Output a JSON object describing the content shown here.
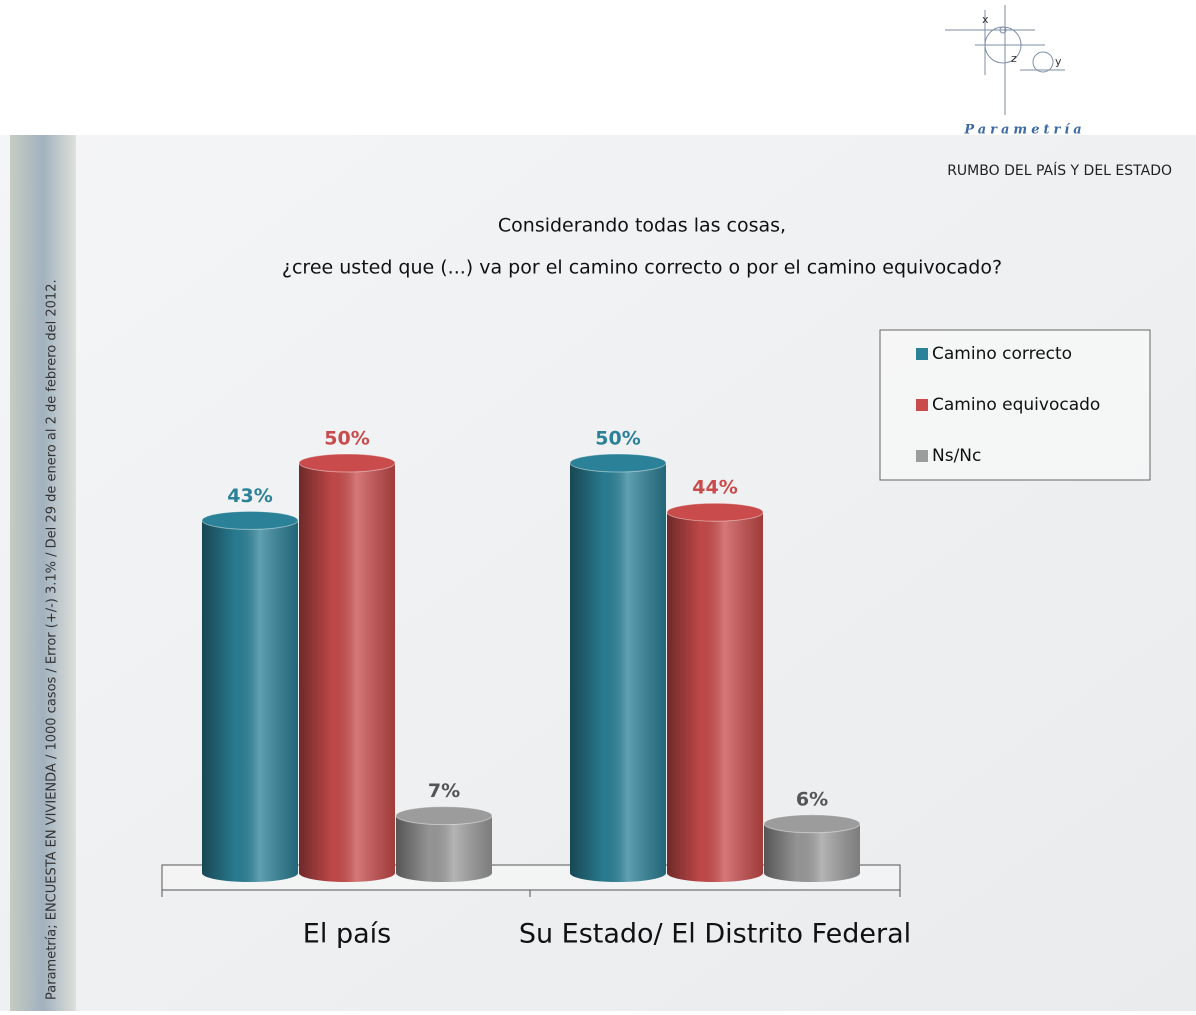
{
  "logo": {
    "name": "Parametría",
    "axes": [
      "x",
      "z",
      "y"
    ]
  },
  "header": "RUMBO DEL PAÍS  Y DEL ESTADO",
  "side_note": "Parametría; ENCUESTA EN VIVIENDA / 1000 casos / Error (+/-) 3.1% / Del 29 de enero al 2 de febrero del 2012.",
  "chart_data": {
    "type": "bar",
    "title": "Considerando todas las cosas,",
    "subtitle": "¿cree usted que (...) va por el camino correcto o por el camino equivocado?",
    "categories": [
      "El país",
      "Su Estado/ El Distrito Federal"
    ],
    "series": [
      {
        "name": "Camino correcto",
        "color": "#2b8197",
        "values": [
          43,
          50
        ],
        "value_labels": [
          "43%",
          "50%"
        ]
      },
      {
        "name": "Camino equivocado",
        "color": "#c94b4b",
        "values": [
          50,
          44
        ],
        "value_labels": [
          "50%",
          "44%"
        ]
      },
      {
        "name": "Ns/Nc",
        "color": "#9c9c9c",
        "values": [
          7,
          6
        ],
        "value_labels": [
          "7%",
          "6%"
        ]
      }
    ],
    "legend": "top-right"
  }
}
